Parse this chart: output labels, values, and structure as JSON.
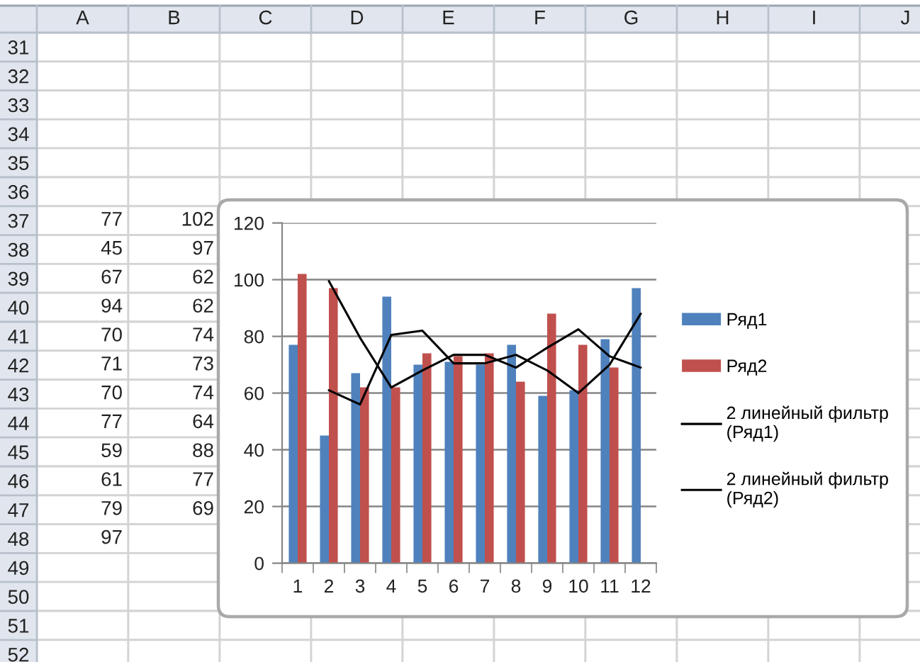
{
  "chart_data": [
    {
      "type": "heatmap",
      "categories": [
        "A",
        "B",
        "C",
        "D",
        "E",
        "F",
        "G",
        "H",
        "I",
        "J"
      ],
      "y_categories": [
        "31",
        "32",
        "33",
        "34",
        "35",
        "36",
        "37",
        "38",
        "39",
        "40",
        "41",
        "42",
        "43",
        "44",
        "45",
        "46",
        "47",
        "48",
        "49",
        "50",
        "51",
        "52"
      ],
      "data_labels": true,
      "cells": [
        [
          null,
          null,
          null,
          null,
          null,
          null,
          null,
          null,
          null,
          null
        ],
        [
          null,
          null,
          null,
          null,
          null,
          null,
          null,
          null,
          null,
          null
        ],
        [
          null,
          null,
          null,
          null,
          null,
          null,
          null,
          null,
          null,
          null
        ],
        [
          null,
          null,
          null,
          null,
          null,
          null,
          null,
          null,
          null,
          null
        ],
        [
          null,
          null,
          null,
          null,
          null,
          null,
          null,
          null,
          null,
          null
        ],
        [
          null,
          null,
          null,
          null,
          null,
          null,
          null,
          null,
          null,
          null
        ],
        [
          77,
          102,
          null,
          null,
          null,
          null,
          null,
          null,
          null,
          null
        ],
        [
          45,
          97,
          null,
          null,
          null,
          null,
          null,
          null,
          null,
          null
        ],
        [
          67,
          62,
          null,
          null,
          null,
          null,
          null,
          null,
          null,
          null
        ],
        [
          94,
          62,
          null,
          null,
          null,
          null,
          null,
          null,
          null,
          null
        ],
        [
          70,
          74,
          null,
          null,
          null,
          null,
          null,
          null,
          null,
          null
        ],
        [
          71,
          73,
          null,
          null,
          null,
          null,
          null,
          null,
          null,
          null
        ],
        [
          70,
          74,
          null,
          null,
          null,
          null,
          null,
          null,
          null,
          null
        ],
        [
          77,
          64,
          null,
          null,
          null,
          null,
          null,
          null,
          null,
          null
        ],
        [
          59,
          88,
          null,
          null,
          null,
          null,
          null,
          null,
          null,
          null
        ],
        [
          61,
          77,
          null,
          null,
          null,
          null,
          null,
          null,
          null,
          null
        ],
        [
          79,
          69,
          null,
          null,
          null,
          null,
          null,
          null,
          null,
          null
        ],
        [
          97,
          null,
          null,
          null,
          null,
          null,
          null,
          null,
          null,
          null
        ],
        [
          null,
          null,
          null,
          null,
          null,
          null,
          null,
          null,
          null,
          null
        ],
        [
          null,
          null,
          null,
          null,
          null,
          null,
          null,
          null,
          null,
          null
        ],
        [
          null,
          null,
          null,
          null,
          null,
          null,
          null,
          null,
          null,
          null
        ],
        [
          null,
          null,
          null,
          null,
          null,
          null,
          null,
          null,
          null,
          null
        ]
      ]
    },
    {
      "type": "bar",
      "categories": [
        "1",
        "2",
        "3",
        "4",
        "5",
        "6",
        "7",
        "8",
        "9",
        "10",
        "11",
        "12"
      ],
      "ylim": [
        0,
        120
      ],
      "yticks": [
        0,
        20,
        40,
        60,
        80,
        100,
        120
      ],
      "grid": "y",
      "legend": "right",
      "series": [
        {
          "name": "Ряд1",
          "color": "#4f81bd",
          "values": [
            77,
            45,
            67,
            94,
            70,
            71,
            70,
            77,
            59,
            61,
            79,
            97
          ]
        },
        {
          "name": "Ряд2",
          "color": "#c0504d",
          "values": [
            102,
            97,
            62,
            62,
            74,
            73,
            74,
            64,
            88,
            77,
            69,
            null
          ]
        },
        {
          "name": "2 линейный фильтр\n(Ряд1)",
          "type": "line",
          "color": "#000000",
          "values": [
            null,
            61,
            56,
            80.5,
            82,
            70.5,
            70.5,
            73.5,
            68,
            60,
            70,
            88
          ]
        },
        {
          "name": "2 линейный фильтр\n(Ряд2)",
          "type": "line",
          "color": "#000000",
          "values": [
            null,
            99.5,
            79.5,
            62,
            68,
            73.5,
            73.5,
            69,
            76,
            82.5,
            73,
            69
          ]
        }
      ]
    }
  ]
}
